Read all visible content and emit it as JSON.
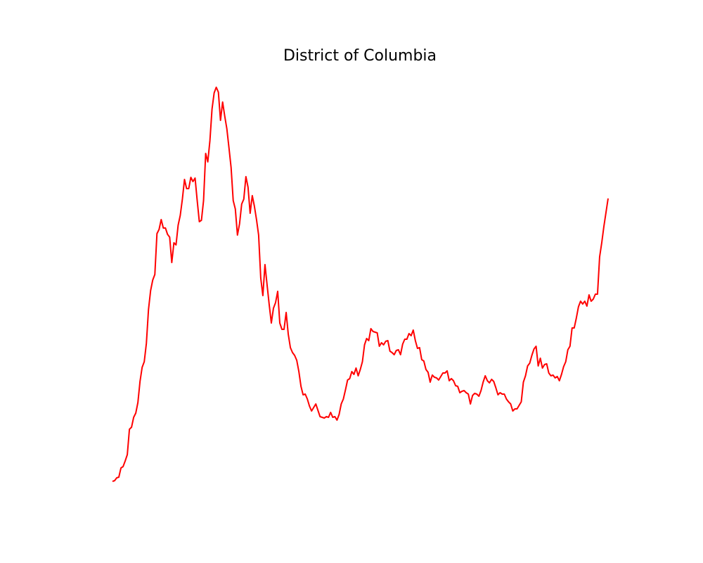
{
  "chart_data": {
    "type": "line",
    "title": "District of Columbia",
    "color": "#ff0000",
    "grid": false,
    "values": [
      0,
      1,
      5,
      6,
      19,
      21,
      29,
      38,
      74,
      77,
      91,
      97,
      112,
      142,
      162,
      170,
      196,
      244,
      271,
      286,
      294,
      352,
      358,
      372,
      360,
      360,
      351,
      347,
      311,
      339,
      336,
      364,
      378,
      401,
      429,
      416,
      416,
      432,
      426,
      431,
      399,
      369,
      371,
      399,
      466,
      454,
      484,
      529,
      552,
      560,
      553,
      513,
      539,
      519,
      501,
      474,
      446,
      399,
      387,
      350,
      366,
      394,
      401,
      433,
      418,
      381,
      406,
      391,
      372,
      350,
      289,
      264,
      308,
      279,
      251,
      225,
      246,
      254,
      270,
      225,
      216,
      216,
      240,
      209,
      190,
      183,
      179,
      172,
      156,
      135,
      123,
      124,
      117,
      107,
      100,
      105,
      110,
      101,
      92,
      91,
      90,
      92,
      91,
      98,
      91,
      92,
      87,
      95,
      110,
      117,
      130,
      144,
      146,
      156,
      152,
      161,
      150,
      159,
      170,
      194,
      203,
      200,
      217,
      213,
      212,
      211,
      192,
      197,
      194,
      199,
      200,
      185,
      183,
      180,
      186,
      187,
      180,
      195,
      202,
      202,
      210,
      207,
      215,
      200,
      189,
      190,
      173,
      171,
      159,
      155,
      141,
      151,
      148,
      147,
      144,
      149,
      154,
      154,
      157,
      143,
      146,
      143,
      136,
      135,
      126,
      128,
      129,
      126,
      124,
      110,
      122,
      125,
      124,
      121,
      129,
      141,
      150,
      143,
      140,
      145,
      142,
      133,
      123,
      126,
      124,
      124,
      117,
      113,
      110,
      100,
      103,
      103,
      108,
      113,
      141,
      150,
      164,
      168,
      179,
      188,
      192,
      164,
      175,
      161,
      166,
      167,
      154,
      150,
      151,
      147,
      149,
      143,
      152,
      163,
      170,
      187,
      192,
      218,
      218,
      232,
      248,
      256,
      252,
      256,
      249,
      265,
      256,
      259,
      266,
      266,
      319,
      339,
      362,
      382,
      402
    ]
  }
}
